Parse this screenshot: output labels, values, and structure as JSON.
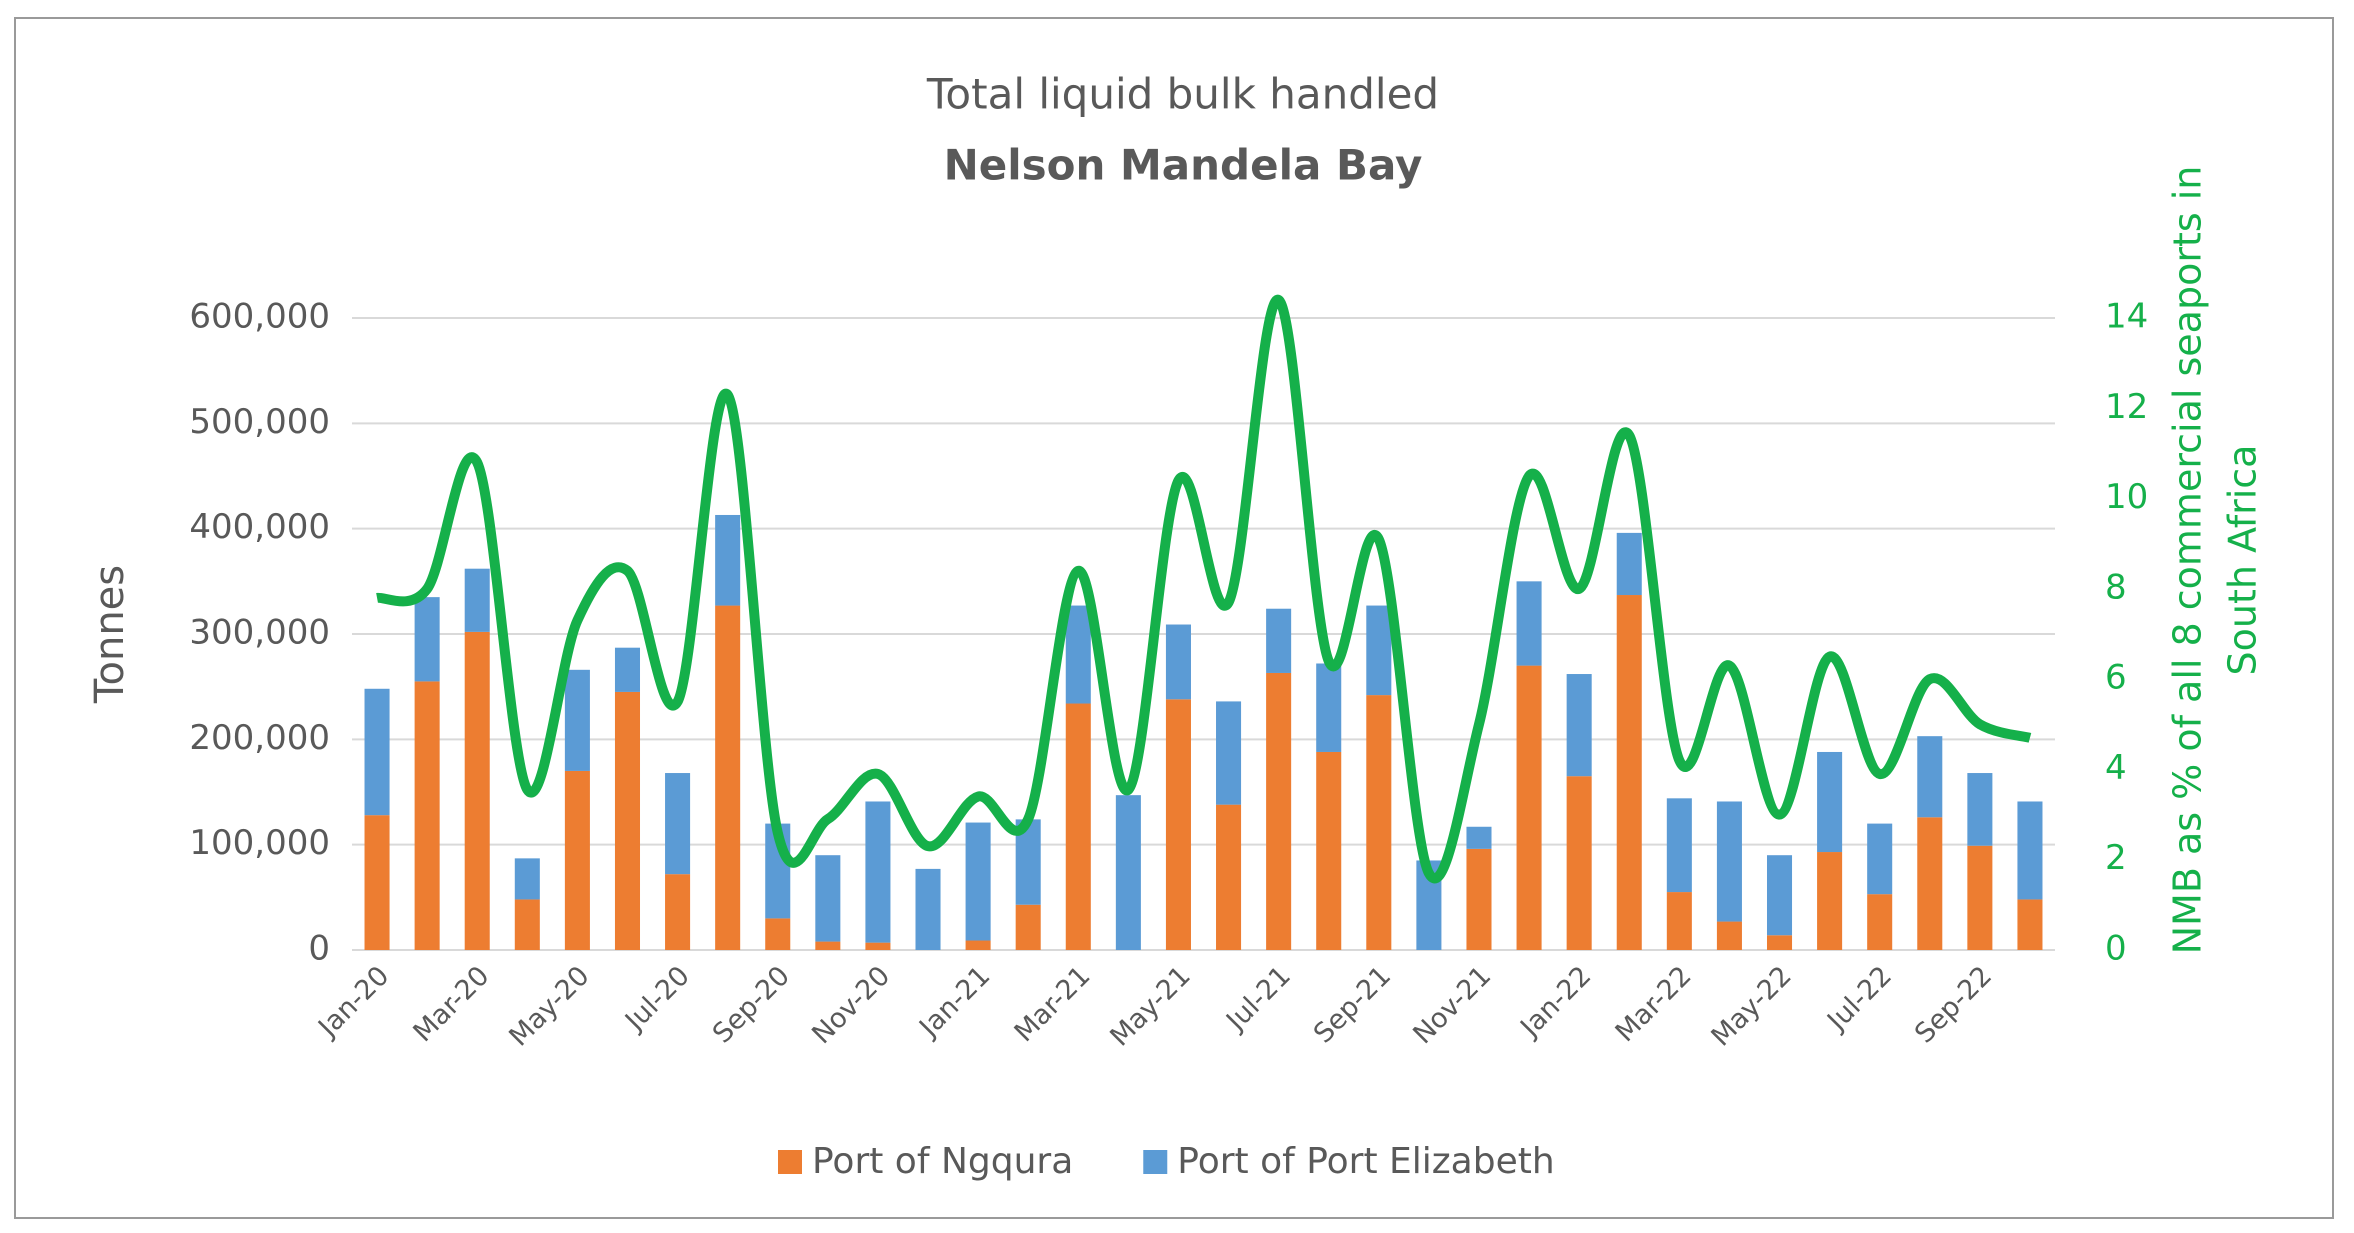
{
  "chart_data": {
    "type": "bar-line",
    "title": "Total liquid  bulk handled",
    "subtitle": "Nelson Mandela Bay",
    "ylabel": "Tonnes",
    "y2label": [
      "NMB as % of all 8 commercial seaports in",
      "South Africa"
    ],
    "categories": [
      "Jan-20",
      null,
      "Mar-20",
      null,
      "May-20",
      null,
      "Jul-20",
      null,
      "Sep-20",
      null,
      "Nov-20",
      null,
      "Jan-21",
      null,
      "Mar-21",
      null,
      "May-21",
      null,
      "Jul-21",
      null,
      "Sep-21",
      null,
      "Nov-21",
      null,
      "Jan-22",
      null,
      "Mar-22",
      null,
      "May-22",
      null,
      "Jul-22",
      null,
      "Sep-22",
      null
    ],
    "series": [
      {
        "name": "Port of Ngqura",
        "color": "#ed7d31",
        "stack": true,
        "values": [
          128000,
          255000,
          302000,
          48000,
          170000,
          245000,
          72000,
          327000,
          30000,
          8000,
          7000,
          0,
          9000,
          43000,
          234000,
          0,
          238000,
          138000,
          263000,
          188000,
          242000,
          0,
          96000,
          270000,
          165000,
          337000,
          55000,
          27000,
          14000,
          93000,
          53000,
          126000,
          99000,
          48000
        ]
      },
      {
        "name": "Port of Port Elizabeth",
        "color": "#5b9bd5",
        "stack": true,
        "values": [
          120000,
          80000,
          60000,
          39000,
          96000,
          42000,
          96000,
          86000,
          90000,
          82000,
          134000,
          77000,
          112000,
          81000,
          93000,
          147000,
          71000,
          98000,
          61000,
          84000,
          85000,
          85000,
          21000,
          80000,
          97000,
          59000,
          89000,
          114000,
          76000,
          95000,
          67000,
          77000,
          69000,
          93000
        ]
      },
      {
        "color": "#15b04a",
        "axis": "y2",
        "line": true,
        "values": [
          7.8,
          8.0,
          10.8,
          3.55,
          7.3,
          8.4,
          5.5,
          12.3,
          2.6,
          2.9,
          3.9,
          2.3,
          3.4,
          2.9,
          8.4,
          3.55,
          10.4,
          7.7,
          14.4,
          6.4,
          9.1,
          1.7,
          5.0,
          10.5,
          8.0,
          11.4,
          4.2,
          6.3,
          3.0,
          6.5,
          3.9,
          6.0,
          5.0,
          4.7
        ]
      }
    ],
    "ylim": [
      0,
      600000
    ],
    "yticks": [
      0,
      {
        "value": 100000,
        "label": "100,000"
      },
      {
        "value": 200000,
        "label": "200,000"
      },
      {
        "value": 300000,
        "label": "300,000"
      },
      {
        "value": 400000,
        "label": "400,000"
      },
      {
        "value": 500000,
        "label": "500,000"
      },
      {
        "value": 600000,
        "label": "600,000"
      }
    ],
    "y2lim": [
      0,
      14
    ],
    "y2ticks": [
      0,
      2,
      4,
      6,
      8,
      10,
      12,
      14
    ],
    "grid": true,
    "legend": "bottom"
  }
}
